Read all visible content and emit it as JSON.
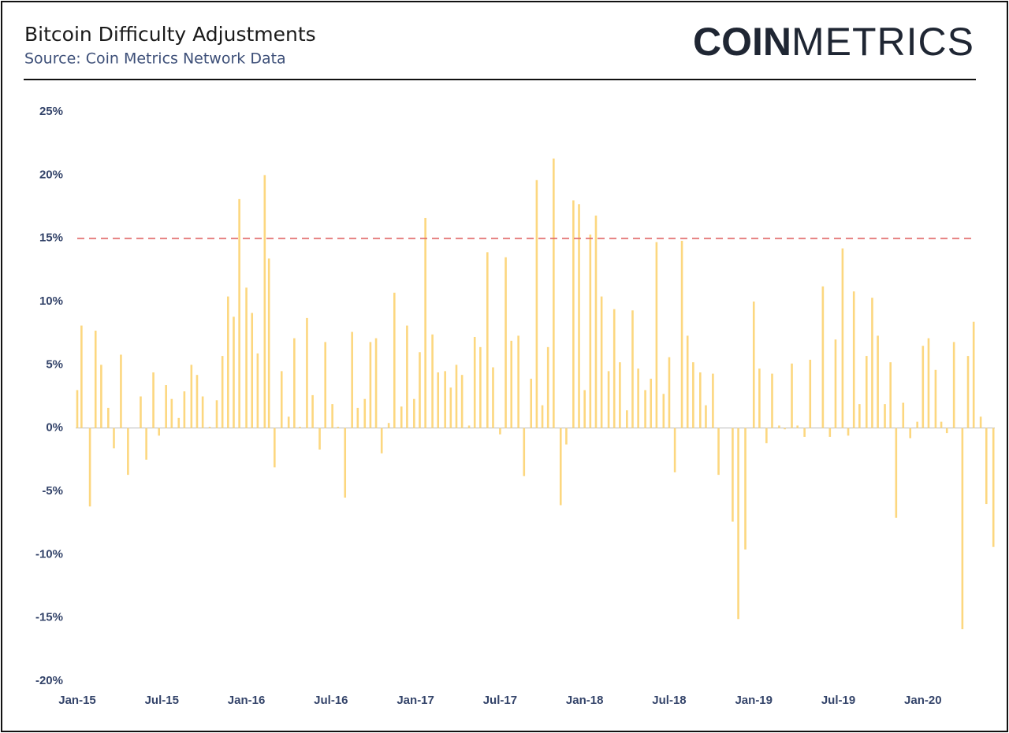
{
  "header": {
    "logo": {
      "bold": "COIN",
      "light": "METRICS"
    }
  },
  "chart_data": {
    "type": "bar",
    "title": "Bitcoin Difficulty Adjustments",
    "subtitle": "Source: Coin Metrics Network Data",
    "color": "#fcd77f",
    "reference_line": {
      "value": 15,
      "color": "#e06666",
      "dashed": true
    },
    "xlim": [
      0,
      65.1
    ],
    "xticks": [
      {
        "value": 0,
        "label": "Jan-15"
      },
      {
        "value": 6,
        "label": "Jul-15"
      },
      {
        "value": 12,
        "label": "Jan-16"
      },
      {
        "value": 18,
        "label": "Jul-16"
      },
      {
        "value": 24,
        "label": "Jan-17"
      },
      {
        "value": 30,
        "label": "Jul-17"
      },
      {
        "value": 36,
        "label": "Jan-18"
      },
      {
        "value": 42,
        "label": "Jul-18"
      },
      {
        "value": 48,
        "label": "Jan-19"
      },
      {
        "value": 54,
        "label": "Jul-19"
      },
      {
        "value": 60,
        "label": "Jan-20"
      }
    ],
    "ylim": [
      -20,
      25
    ],
    "yticks": [
      {
        "value": 25,
        "label": "25%"
      },
      {
        "value": 20,
        "label": "20%"
      },
      {
        "value": 15,
        "label": "15%"
      },
      {
        "value": 10,
        "label": "10%"
      },
      {
        "value": 5,
        "label": "5%"
      },
      {
        "value": 0,
        "label": "0%"
      },
      {
        "value": -5,
        "label": "-5%"
      },
      {
        "value": -10,
        "label": "-10%"
      },
      {
        "value": -15,
        "label": "-15%"
      },
      {
        "value": -20,
        "label": "-20%"
      }
    ],
    "x": [
      0,
      0.3,
      0.9,
      1.3,
      1.7,
      2.2,
      2.6,
      3.1,
      3.6,
      4.5,
      4.9,
      5.4,
      5.8,
      6.3,
      6.7,
      7.2,
      7.6,
      8.1,
      8.5,
      8.9,
      9.4,
      9.9,
      10.3,
      10.7,
      11.1,
      11.5,
      12.0,
      12.4,
      12.8,
      13.3,
      13.6,
      14.0,
      14.5,
      15.0,
      15.4,
      15.8,
      16.3,
      16.7,
      17.2,
      17.6,
      18.1,
      18.5,
      19.0,
      19.5,
      19.9,
      20.4,
      20.8,
      21.2,
      21.6,
      22.1,
      22.5,
      23.0,
      23.4,
      23.9,
      24.3,
      24.7,
      25.2,
      25.6,
      26.1,
      26.5,
      26.9,
      27.3,
      27.8,
      28.2,
      28.6,
      29.1,
      29.5,
      30.0,
      30.4,
      30.8,
      31.3,
      31.7,
      32.2,
      32.6,
      33.0,
      33.4,
      33.8,
      34.3,
      34.7,
      35.2,
      35.6,
      36.0,
      36.4,
      36.8,
      37.2,
      37.7,
      38.1,
      38.5,
      39.0,
      39.4,
      39.8,
      40.3,
      40.7,
      41.1,
      41.6,
      42.0,
      42.4,
      42.9,
      43.3,
      43.7,
      44.2,
      44.6,
      45.1,
      45.5,
      46.5,
      46.9,
      47.4,
      48.0,
      48.4,
      48.9,
      49.3,
      49.8,
      50.2,
      50.7,
      51.1,
      51.6,
      52.0,
      52.9,
      53.4,
      53.8,
      54.3,
      54.7,
      55.1,
      55.5,
      56.0,
      56.4,
      56.8,
      57.3,
      57.7,
      58.1,
      58.6,
      59.1,
      59.6,
      60.0,
      60.4,
      60.9,
      61.3,
      61.7,
      62.2,
      62.8,
      63.2,
      63.6,
      64.1,
      64.5,
      65.0
    ],
    "values": [
      3.0,
      8.1,
      -6.2,
      7.7,
      5.0,
      1.6,
      -1.6,
      5.8,
      -3.7,
      2.5,
      -2.5,
      4.4,
      -0.6,
      3.4,
      2.3,
      0.8,
      2.9,
      5.0,
      4.2,
      2.5,
      0.1,
      2.2,
      5.7,
      10.4,
      8.8,
      18.1,
      11.1,
      9.1,
      5.9,
      20.0,
      13.4,
      -3.1,
      4.5,
      0.9,
      7.1,
      0.1,
      8.7,
      2.6,
      -1.7,
      6.8,
      1.9,
      0.1,
      -5.5,
      7.6,
      1.6,
      2.3,
      6.8,
      7.1,
      -2.0,
      0.4,
      10.7,
      1.7,
      8.1,
      2.3,
      6.0,
      16.6,
      7.4,
      4.4,
      4.5,
      3.2,
      5.0,
      4.2,
      0.2,
      7.2,
      6.4,
      13.9,
      4.8,
      -0.5,
      13.5,
      6.9,
      7.3,
      -3.8,
      3.9,
      19.6,
      1.8,
      6.4,
      21.3,
      -6.1,
      -1.3,
      18.0,
      17.7,
      3.0,
      15.3,
      16.8,
      10.4,
      4.5,
      9.4,
      5.2,
      1.4,
      9.3,
      4.7,
      3.0,
      3.9,
      14.7,
      2.7,
      5.6,
      -3.5,
      14.8,
      7.3,
      5.2,
      4.4,
      1.8,
      4.3,
      -3.7,
      -7.4,
      -15.1,
      -9.6,
      10.0,
      4.7,
      -1.2,
      4.3,
      0.2,
      -0.1,
      5.1,
      0.2,
      -0.7,
      5.4,
      11.2,
      -0.7,
      7.0,
      14.2,
      -0.6,
      10.8,
      1.9,
      5.7,
      10.3,
      7.3,
      1.9,
      5.2,
      -7.1,
      2.0,
      -0.8,
      0.5,
      6.5,
      7.1,
      4.6,
      0.5,
      -0.4,
      6.8,
      -15.9,
      5.7,
      8.4,
      0.9,
      -6.0,
      -9.4
    ]
  }
}
